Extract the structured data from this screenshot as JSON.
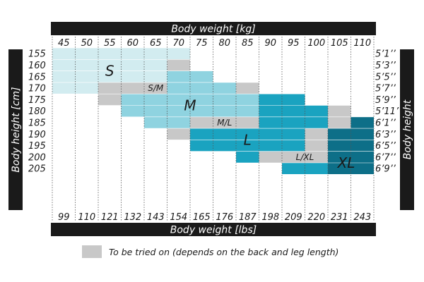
{
  "chart_data": {
    "type": "table",
    "title_top": "Body weight [kg]",
    "title_bottom": "Body weight [lbs]",
    "title_left": "Body height [cm]",
    "title_right": "Body height",
    "weights_kg": [
      "45",
      "50",
      "55",
      "60",
      "65",
      "70",
      "75",
      "80",
      "85",
      "90",
      "95",
      "100",
      "105",
      "110"
    ],
    "weights_lbs": [
      "99",
      "110",
      "121",
      "132",
      "143",
      "154",
      "165",
      "176",
      "187",
      "198",
      "209",
      "220",
      "231",
      "243"
    ],
    "heights_cm": [
      "155",
      "160",
      "165",
      "170",
      "175",
      "180",
      "185",
      "190",
      "195",
      "200",
      "205"
    ],
    "heights_ft": [
      "5’1’’",
      "5’3’’",
      "5’5’’",
      "5’7’’",
      "5’9’’",
      "5’11’’",
      "6’1’’",
      "6’3’’",
      "6’5’’",
      "6’7’’",
      "6’9’’"
    ],
    "sizes": [
      {
        "name": "S",
        "color": "#d2ecf0"
      },
      {
        "name": "M",
        "color": "#8fd3e0"
      },
      {
        "name": "L",
        "color": "#1aa3c0"
      },
      {
        "name": "XL",
        "color": "#0d6f88"
      },
      {
        "name": "tried",
        "color": "#c8c8c8"
      }
    ],
    "grid": [
      "SSSSSS........",
      "SSSSSG........",
      "SSSSSMM.......",
      "SSGGGMMMG.....",
      "..GMMMMMMLL...",
      "...MMMMMMLLLG.",
      "....MMGGGLLLGX",
      ".....GLLLLLGXX",
      "......LLLLLGXX",
      "........LGGGXX",
      "..........LLXX"
    ],
    "region_labels": [
      {
        "text": "S",
        "kg": 55,
        "cm": 162.5
      },
      {
        "text": "S/M",
        "kg": 65,
        "cm": 170
      },
      {
        "text": "M",
        "kg": 72.5,
        "cm": 177.5
      },
      {
        "text": "M/L",
        "kg": 80,
        "cm": 185
      },
      {
        "text": "L",
        "kg": 85,
        "cm": 192.5
      },
      {
        "text": "L/XL",
        "kg": 97.5,
        "cm": 200
      },
      {
        "text": "XL",
        "kg": 106.5,
        "cm": 202.5
      }
    ],
    "legend_text": "To be tried on (depends on the back and leg length)"
  }
}
